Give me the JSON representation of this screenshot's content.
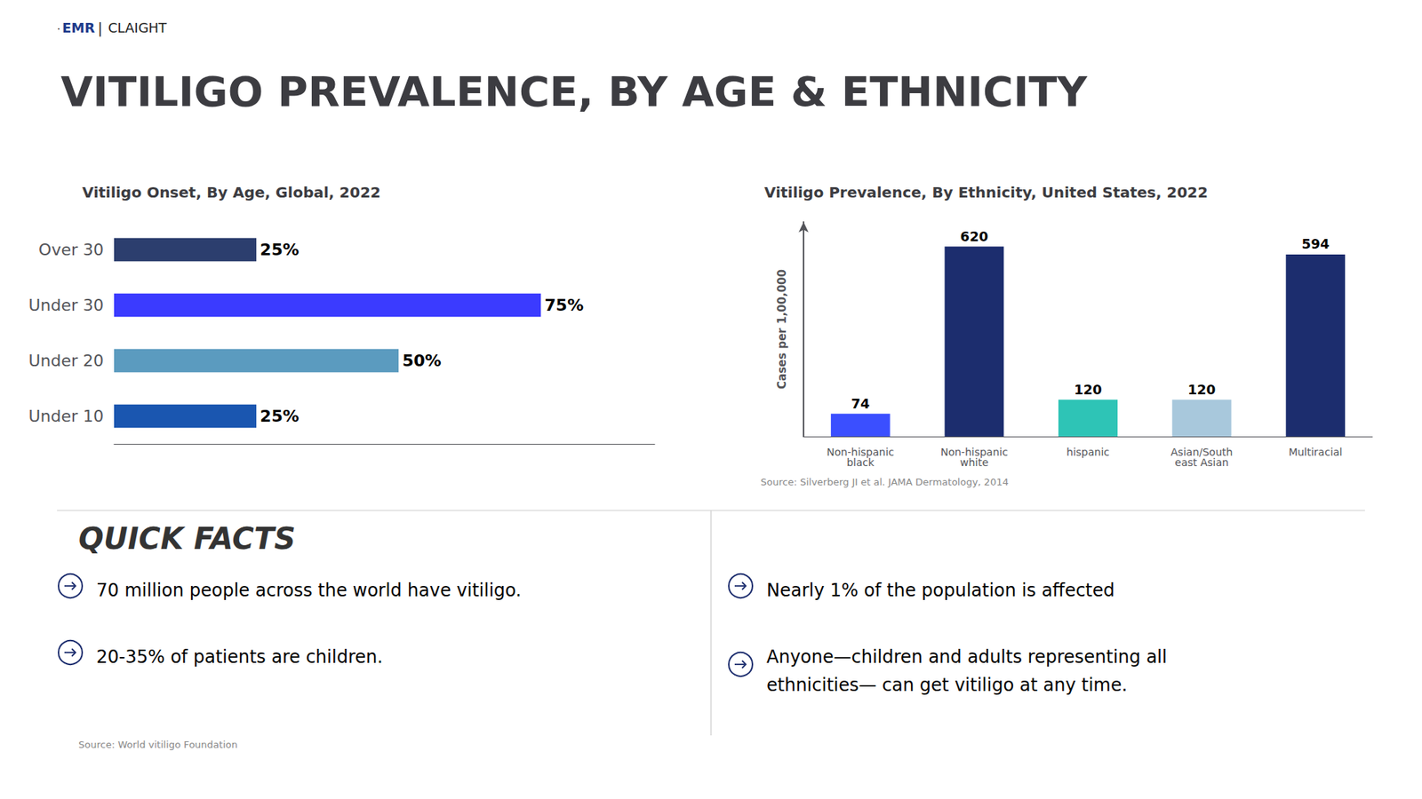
{
  "title": "VITILIGO PREVALENCE, BY AGE & ETHNICITY",
  "annotations": [
    ".",
    "EMR",
    "|",
    "CLAIGHT",
    "QUICK FACTS",
    "70 million people across the world have vitiligo.",
    "20-35% of patients are children.",
    "Nearly 1% of the population is affected",
    "Anyone—children and adults representing all\nethnicities— can get vitiligo at any time.",
    "Source: World vitiligo Foundation"
  ],
  "chart_data": [
    {
      "type": "bar",
      "orientation": "horizontal",
      "title": "Vitiligo Onset, By Age, Global, 2022",
      "categories": [
        "Over 30",
        "Under 30",
        "Under 20",
        "Under 10"
      ],
      "values": [
        25,
        75,
        50,
        25
      ],
      "value_labels": [
        "25%",
        "75%",
        "50%",
        "25%"
      ],
      "colors": [
        "#2C3E6E",
        "#3B3BFF",
        "#5B9BBF",
        "#1A56B0"
      ],
      "xlim": [
        0,
        95
      ],
      "data_labels": true,
      "tick_labels": "y",
      "grid": false
    },
    {
      "type": "bar",
      "title": "Vitiligo Prevalence, By Ethnicity, United States, 2022",
      "categories": [
        "Non-hispanic\nblack",
        "Non-hispanic\nwhite",
        "hispanic",
        "Asian/South\neast Asian",
        "Multiracial"
      ],
      "values": [
        74,
        620,
        120,
        120,
        594
      ],
      "colors": [
        "#3B4FFF",
        "#1C2D6E",
        "#2EC4B6",
        "#A8C8DC",
        "#1C2D6E"
      ],
      "ylabel": "Cases per 1,00,000",
      "ylim": [
        0,
        700
      ],
      "data_labels": true,
      "tick_labels": "x",
      "grid": false,
      "annotations": [
        "Source: Silverberg JI et al. JAMA Dermatology, 2014"
      ]
    }
  ]
}
